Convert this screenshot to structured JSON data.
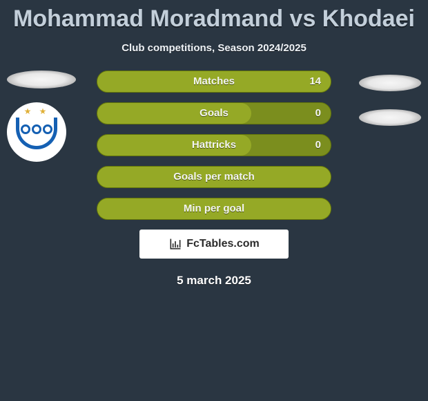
{
  "header": {
    "title": "Mohammad Moradmand vs Khodaei",
    "subtitle": "Club competitions, Season 2024/2025"
  },
  "bars": [
    {
      "label": "Matches",
      "right_value": "14",
      "fill_pct": 100,
      "fill_color": "#95a926",
      "track_color": "#95a926"
    },
    {
      "label": "Goals",
      "right_value": "0",
      "fill_pct": 66,
      "fill_color": "#95a926",
      "track_color": "#7b8e1e"
    },
    {
      "label": "Hattricks",
      "right_value": "0",
      "fill_pct": 66,
      "fill_color": "#95a926",
      "track_color": "#7b8e1e"
    },
    {
      "label": "Goals per match",
      "right_value": "",
      "fill_pct": 100,
      "fill_color": "#95a926",
      "track_color": "#95a926"
    },
    {
      "label": "Min per goal",
      "right_value": "",
      "fill_pct": 100,
      "fill_color": "#95a926",
      "track_color": "#95a926"
    }
  ],
  "brand": "FcTables.com",
  "date": "5 march 2025",
  "style": {
    "bg": "#2a3642",
    "bar_border": "#637609",
    "title_color": "#c3cfda"
  }
}
